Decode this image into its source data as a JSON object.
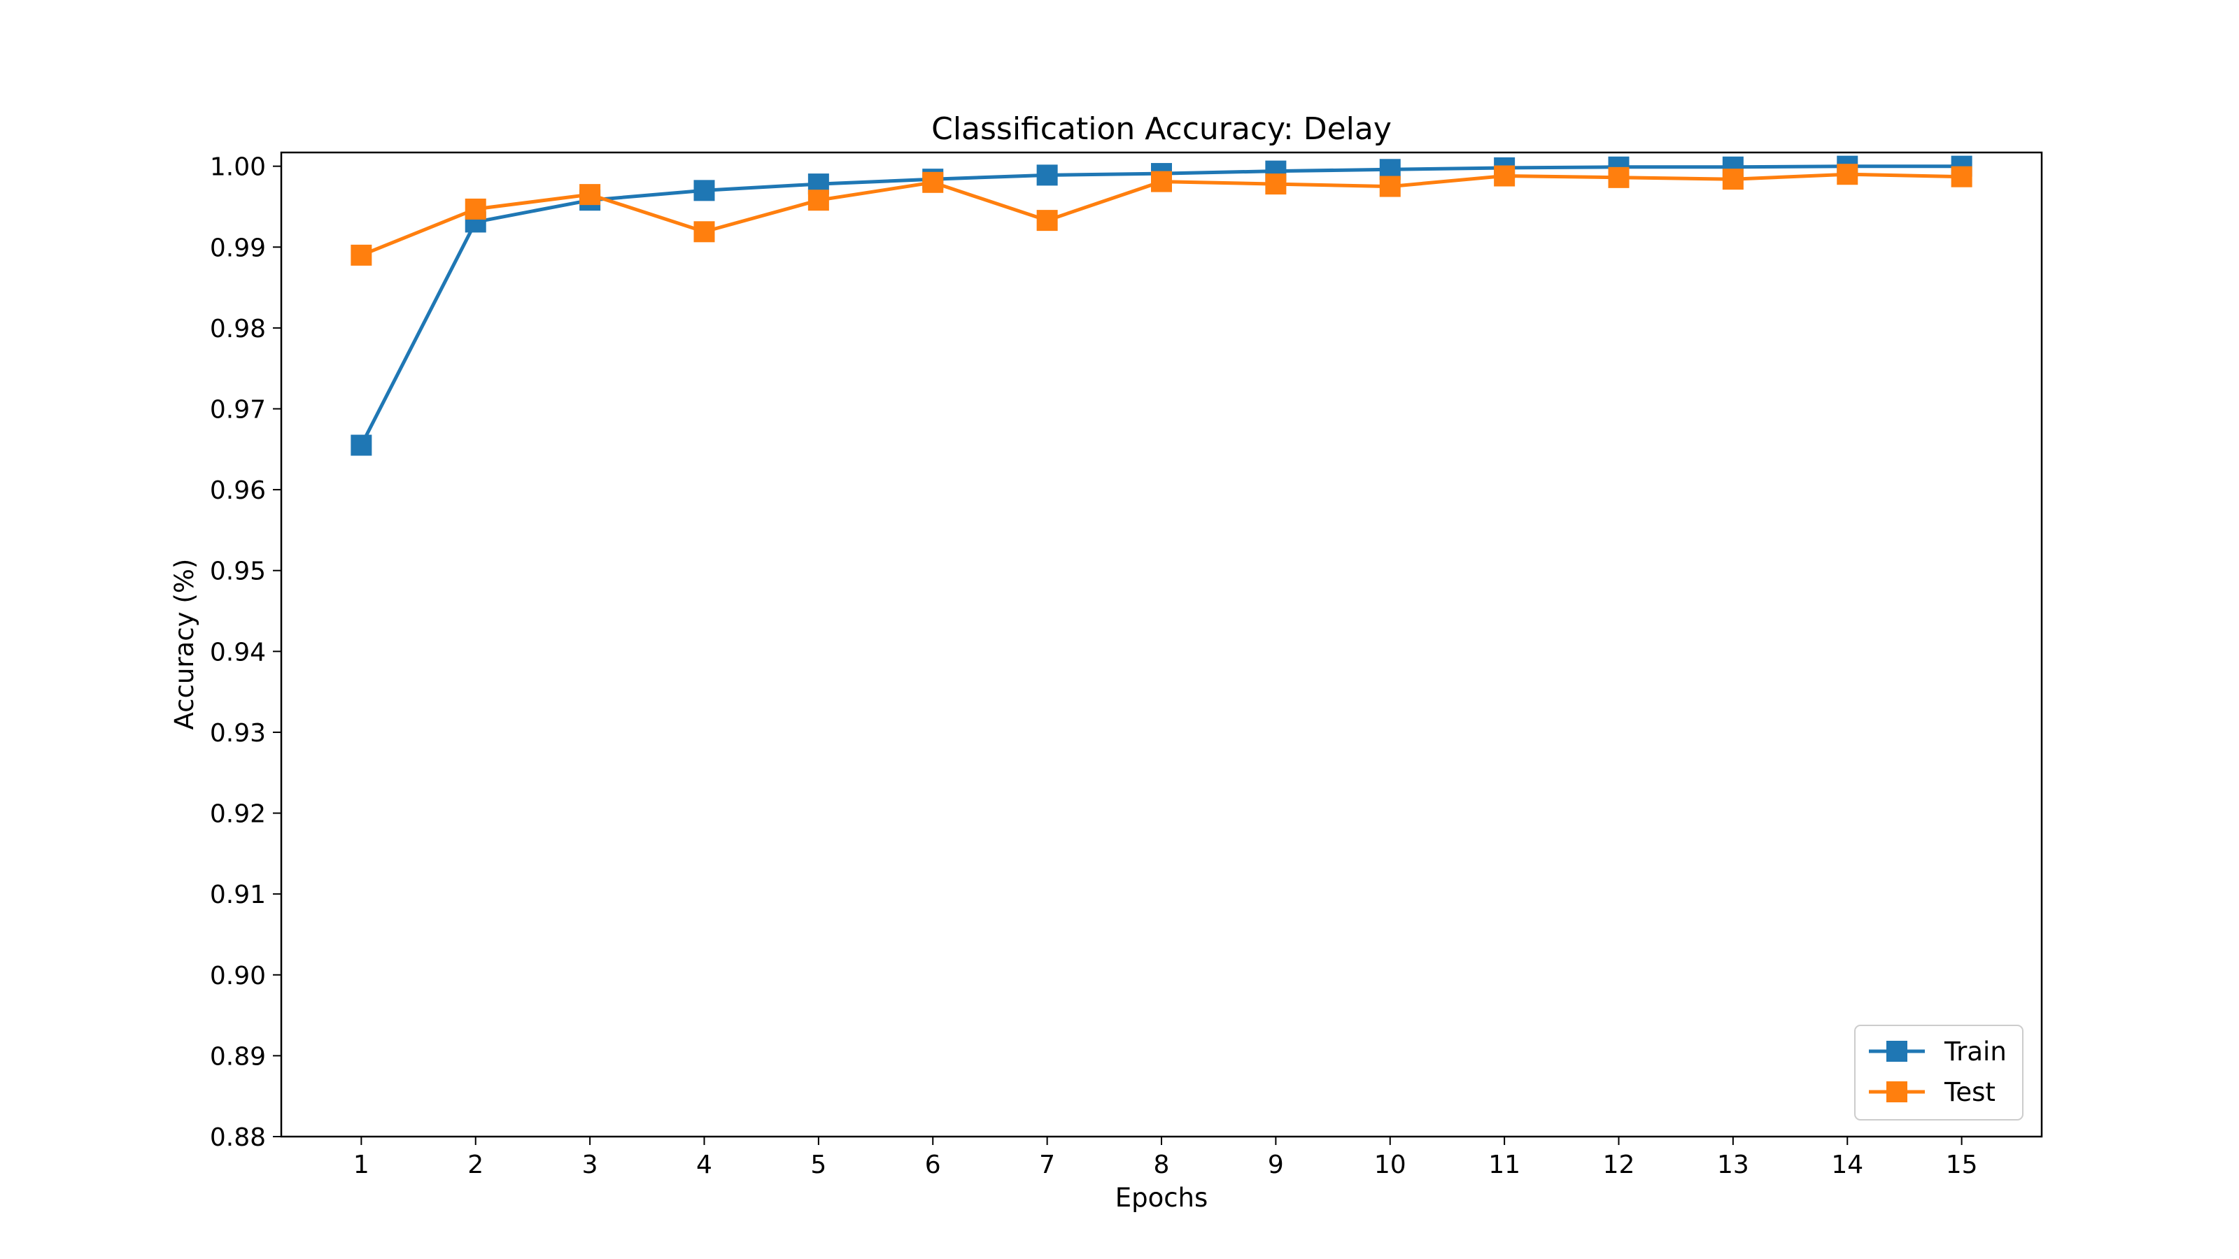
{
  "chart_data": {
    "type": "line",
    "title": "Classification Accuracy: Delay",
    "xlabel": "Epochs",
    "ylabel": "Accuracy (%)",
    "x": [
      1,
      2,
      3,
      4,
      5,
      6,
      7,
      8,
      9,
      10,
      11,
      12,
      13,
      14,
      15
    ],
    "xticks": [
      "1",
      "2",
      "3",
      "4",
      "5",
      "6",
      "7",
      "8",
      "9",
      "10",
      "11",
      "12",
      "13",
      "14",
      "15"
    ],
    "yticks": [
      "0.88",
      "0.89",
      "0.90",
      "0.91",
      "0.92",
      "0.93",
      "0.94",
      "0.95",
      "0.96",
      "0.97",
      "0.98",
      "0.99",
      "1.00"
    ],
    "ylim": [
      0.88,
      1.0017
    ],
    "xlim": [
      0.3,
      15.7
    ],
    "grid": false,
    "legend_position": "lower-right",
    "series": [
      {
        "name": "Train",
        "color": "#1f77b4",
        "marker": "square",
        "values": [
          0.9655,
          0.9931,
          0.9958,
          0.997,
          0.9978,
          0.9984,
          0.9989,
          0.9991,
          0.9994,
          0.9996,
          0.9998,
          0.9999,
          0.9999,
          1.0,
          1.0
        ]
      },
      {
        "name": "Test",
        "color": "#ff7f0e",
        "marker": "square",
        "values": [
          0.989,
          0.9947,
          0.9965,
          0.9919,
          0.9958,
          0.998,
          0.9933,
          0.9981,
          0.9978,
          0.9975,
          0.9988,
          0.9986,
          0.9984,
          0.999,
          0.9987
        ]
      }
    ]
  }
}
